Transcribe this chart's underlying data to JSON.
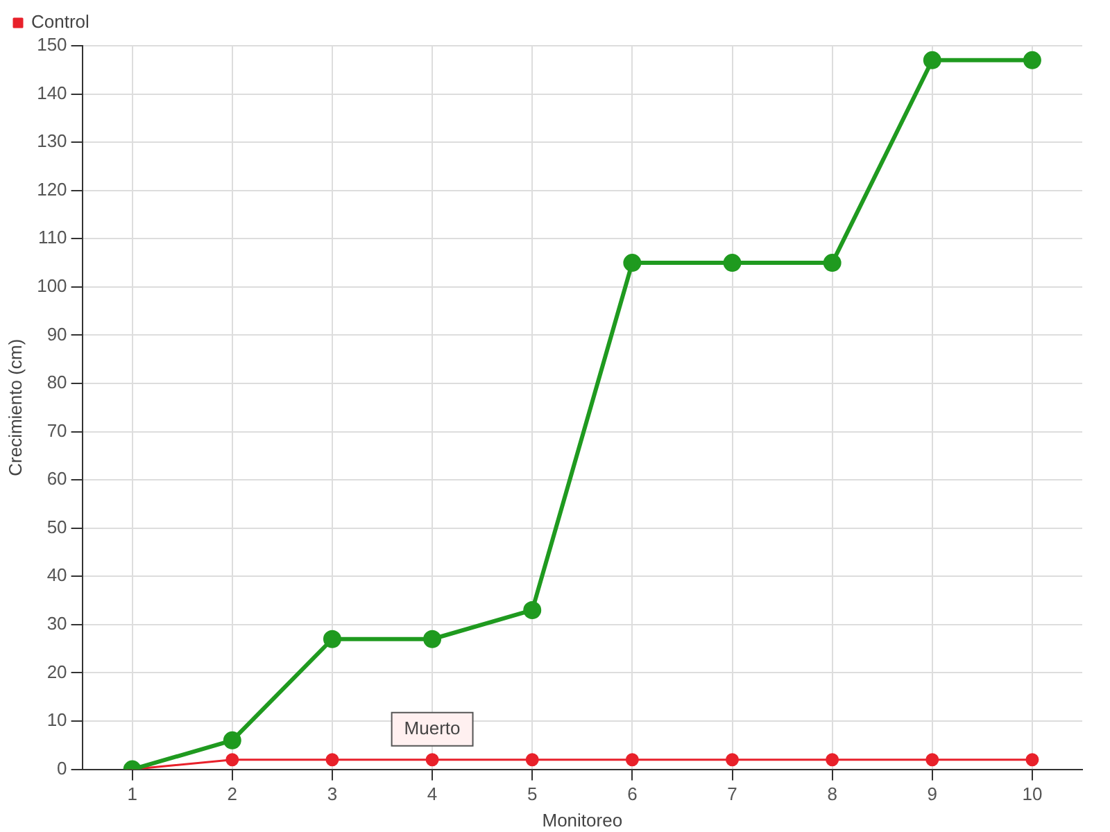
{
  "chart_data": {
    "type": "line",
    "xlabel": "Monitoreo",
    "ylabel": "Crecimiento (cm)",
    "categories": [
      "1",
      "2",
      "3",
      "4",
      "5",
      "6",
      "7",
      "8",
      "9",
      "10"
    ],
    "series": [
      {
        "color": "#1f9a1f",
        "values": [
          0,
          6,
          27,
          27,
          33,
          105,
          105,
          105,
          147,
          147
        ]
      },
      {
        "name": "Control",
        "color": "#e8212b",
        "values": [
          0,
          2,
          2,
          2,
          2,
          2,
          2,
          2,
          2,
          2
        ]
      }
    ],
    "ylim": [
      0,
      150
    ],
    "yticks": [
      0,
      10,
      20,
      30,
      40,
      50,
      60,
      70,
      80,
      90,
      100,
      110,
      120,
      130,
      140,
      150
    ],
    "grid": true,
    "legend": "top left",
    "marker": "circle",
    "line_style": "solid",
    "annotations": [
      {
        "text": "Muerto",
        "x": "4",
        "y": 2
      }
    ]
  }
}
